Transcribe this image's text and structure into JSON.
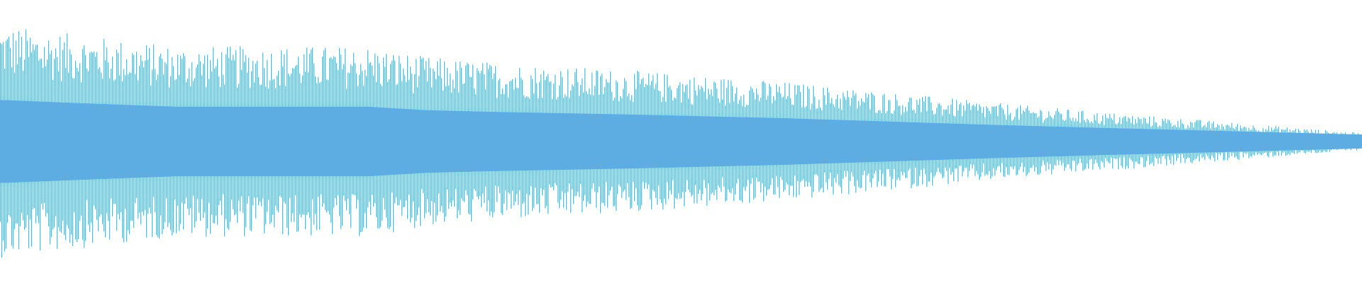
{
  "waveform": {
    "type": "audio-waveform",
    "color": "#5dade2",
    "background": "#ffffff"
  }
}
